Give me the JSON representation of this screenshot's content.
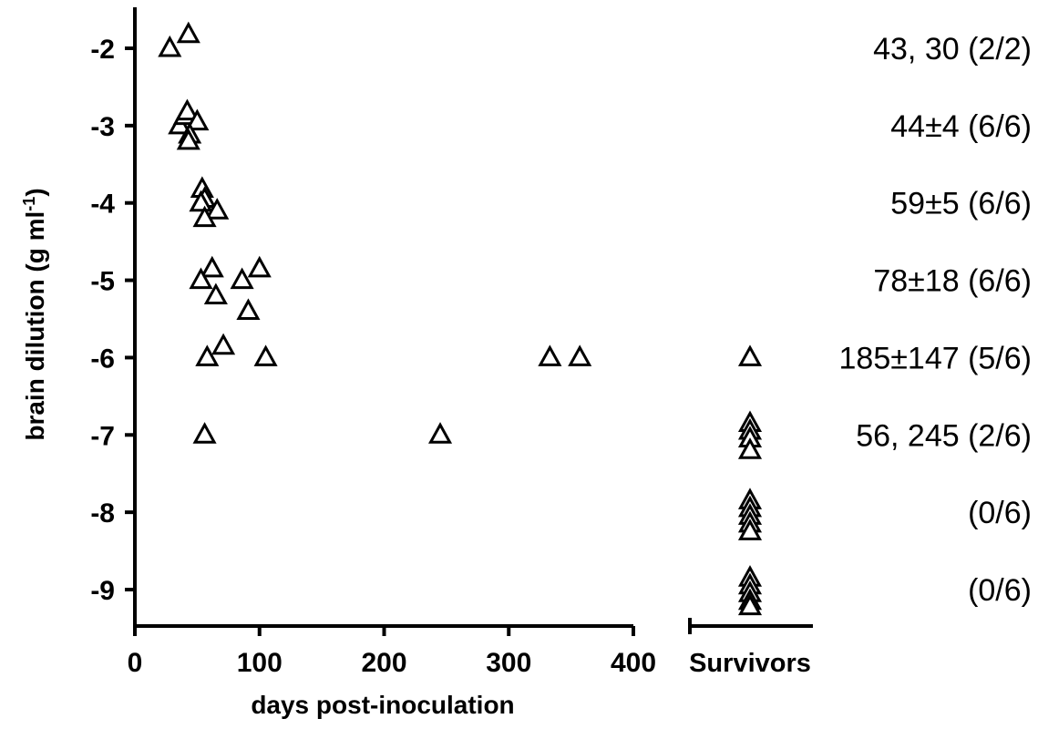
{
  "chart_data": {
    "type": "scatter",
    "marker": "open-triangle",
    "xlabel": "days post-inoculation",
    "ylabel_main": "brain dilution (g ml",
    "ylabel_sup": "-1",
    "ylabel_close": ")",
    "xlim": [
      0,
      400
    ],
    "ylim": [
      -9.5,
      -1.5
    ],
    "x_ticks": [
      0,
      100,
      200,
      300,
      400
    ],
    "y_ticks": [
      -2,
      -3,
      -4,
      -5,
      -6,
      -7,
      -8,
      -9
    ],
    "survivors_label": "Survivors",
    "points": [
      {
        "x": 28,
        "y": -2.0
      },
      {
        "x": 43,
        "y": -1.82
      },
      {
        "x": 36,
        "y": -3.0
      },
      {
        "x": 40,
        "y": -2.88
      },
      {
        "x": 42,
        "y": -2.82
      },
      {
        "x": 50,
        "y": -2.95
      },
      {
        "x": 44,
        "y": -3.12
      },
      {
        "x": 43,
        "y": -3.2
      },
      {
        "x": 54,
        "y": -3.82
      },
      {
        "x": 56,
        "y": -3.95
      },
      {
        "x": 53,
        "y": -4.0
      },
      {
        "x": 66,
        "y": -4.1
      },
      {
        "x": 56,
        "y": -4.2
      },
      {
        "x": 62,
        "y": -4.85
      },
      {
        "x": 53,
        "y": -5.0
      },
      {
        "x": 86,
        "y": -5.0
      },
      {
        "x": 100,
        "y": -4.85
      },
      {
        "x": 65,
        "y": -5.2
      },
      {
        "x": 91,
        "y": -5.4
      },
      {
        "x": 71,
        "y": -5.85
      },
      {
        "x": 58,
        "y": -6.0
      },
      {
        "x": 105,
        "y": -6.0
      },
      {
        "x": 333,
        "y": -6.0
      },
      {
        "x": 357,
        "y": -6.0
      },
      {
        "x": 56,
        "y": -7.0
      },
      {
        "x": 245,
        "y": -7.0
      }
    ],
    "survivors": [
      -6.0,
      -6.85,
      -6.95,
      -7.05,
      -7.2,
      -7.85,
      -7.95,
      -8.05,
      -8.15,
      -8.25,
      -8.85,
      -8.95,
      -9.05,
      -9.15,
      -9.22
    ],
    "annotations": [
      {
        "y": -2,
        "text": "43, 30 (2/2)"
      },
      {
        "y": -3,
        "text": "44±4 (6/6)"
      },
      {
        "y": -4,
        "text": "59±5 (6/6)"
      },
      {
        "y": -5,
        "text": "78±18 (6/6)"
      },
      {
        "y": -6,
        "text": "185±147 (5/6)"
      },
      {
        "y": -7,
        "text": "56, 245 (2/6)"
      },
      {
        "y": -8,
        "text": "(0/6)"
      },
      {
        "y": -9,
        "text": "(0/6)"
      }
    ]
  }
}
